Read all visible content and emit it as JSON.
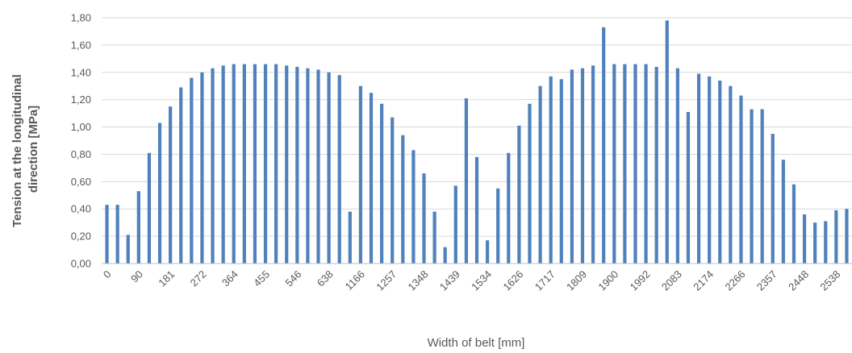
{
  "chart_data": {
    "type": "bar",
    "xlabel": "Width of belt [mm]",
    "ylabel_lines": [
      "Tension at the longitudinal",
      "direction [MPa]"
    ],
    "ylim": [
      0,
      1.8
    ],
    "yticks": [
      "0,00",
      "0,20",
      "0,40",
      "0,60",
      "0,80",
      "1,00",
      "1,20",
      "1,40",
      "1,60",
      "1,80"
    ],
    "grid": true,
    "bar_color": "#4f81bd",
    "x_tick_labels": [
      "0",
      "90",
      "181",
      "272",
      "364",
      "455",
      "546",
      "638",
      "1166",
      "1257",
      "1348",
      "1439",
      "1534",
      "1626",
      "1717",
      "1809",
      "1900",
      "1992",
      "2083",
      "2174",
      "2266",
      "2357",
      "2448",
      "2538"
    ],
    "values": [
      0.43,
      0.43,
      0.21,
      0.53,
      0.81,
      1.03,
      1.15,
      1.29,
      1.36,
      1.4,
      1.43,
      1.45,
      1.46,
      1.46,
      1.46,
      1.46,
      1.46,
      1.45,
      1.44,
      1.43,
      1.42,
      1.4,
      1.38,
      0.38,
      1.3,
      1.25,
      1.17,
      1.07,
      0.94,
      0.83,
      0.66,
      0.38,
      0.12,
      0.57,
      1.21,
      0.78,
      0.17,
      0.55,
      0.81,
      1.01,
      1.17,
      1.3,
      1.37,
      1.35,
      1.42,
      1.43,
      1.45,
      1.73,
      1.46,
      1.46,
      1.46,
      1.46,
      1.44,
      1.78,
      1.43,
      1.11,
      1.39,
      1.37,
      1.34,
      1.3,
      1.23,
      1.13,
      1.13,
      0.95,
      0.76,
      0.58,
      0.36,
      0.3,
      0.31,
      0.39,
      0.4
    ]
  }
}
